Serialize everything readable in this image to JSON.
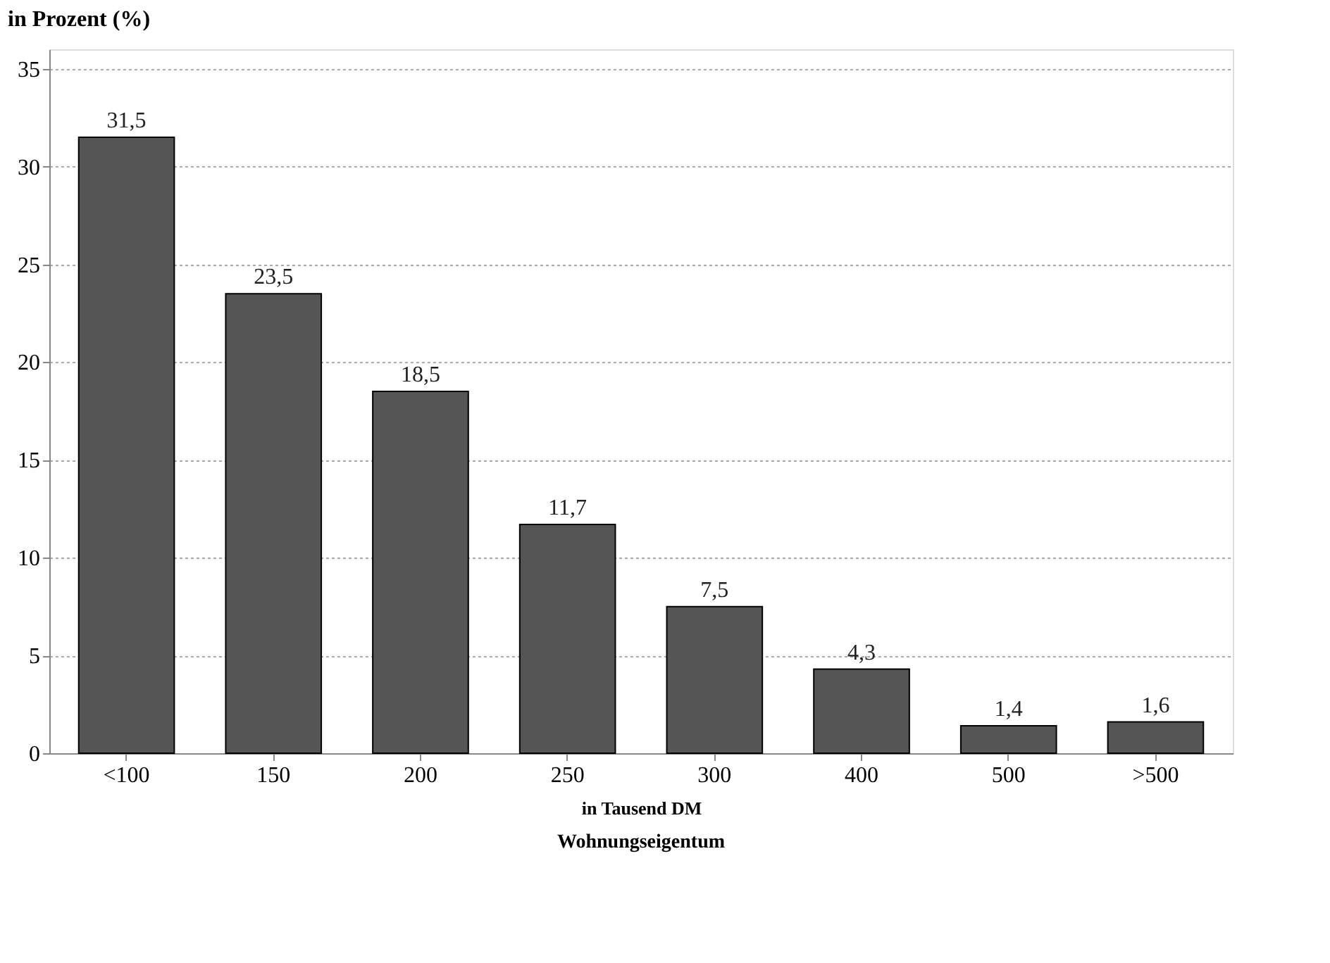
{
  "chart_data": {
    "type": "bar",
    "ylabel": "in Prozent (%)",
    "xlabel": "in Tausend DM",
    "categories": [
      "<100",
      "150",
      "200",
      "250",
      "300",
      "400",
      "500",
      ">500"
    ],
    "values": [
      31.5,
      23.5,
      18.5,
      11.7,
      7.5,
      4.3,
      1.4,
      1.6
    ],
    "value_labels": [
      "31,5",
      "23,5",
      "18,5",
      "11,7",
      "7,5",
      "4,3",
      "1,4",
      "1,6"
    ],
    "color": "#555555",
    "ylim": [
      0,
      36
    ],
    "yticks": [
      0,
      5,
      10,
      15,
      20,
      25,
      30,
      35
    ],
    "grid": "y",
    "annotations": [
      "Wohnungseigentum"
    ]
  }
}
